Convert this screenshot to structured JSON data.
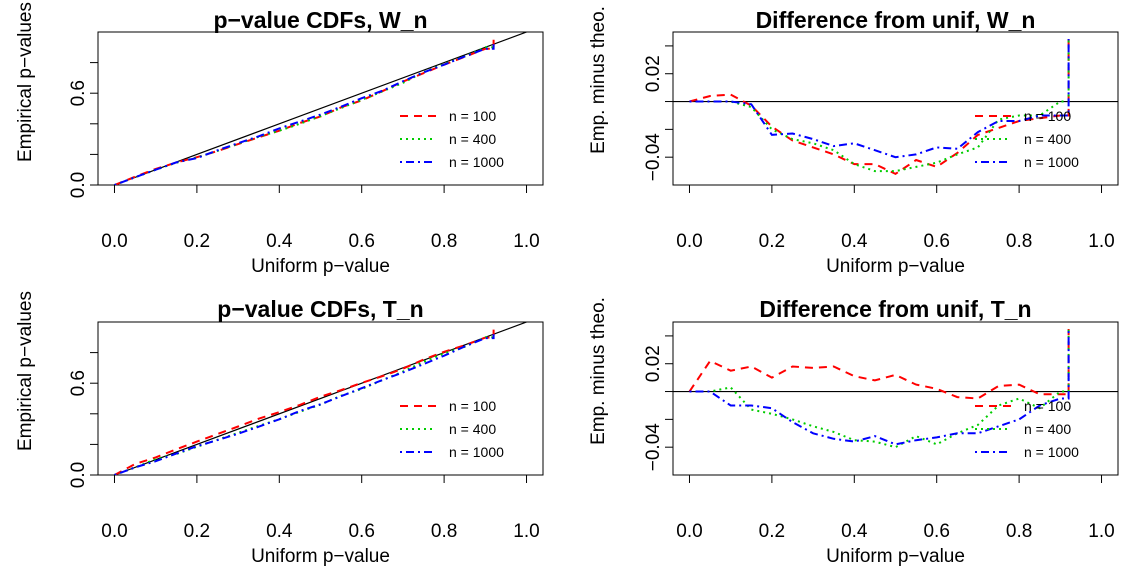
{
  "chart_data": [
    {
      "type": "line",
      "title": "p−value CDFs, W_n",
      "xlabel": "Uniform p−value",
      "ylabel": "Empirical p−values",
      "xlim": [
        -0.04,
        1.04
      ],
      "ylim": [
        0.0,
        1.0
      ],
      "xticks": [
        "0.0",
        "0.2",
        "0.4",
        "0.6",
        "0.8",
        "1.0"
      ],
      "yticks": [
        "0.0",
        "0.6"
      ],
      "reference_line": "y = x",
      "legend_position": "right",
      "x": [
        0.0,
        0.05,
        0.1,
        0.15,
        0.2,
        0.25,
        0.3,
        0.35,
        0.4,
        0.45,
        0.5,
        0.55,
        0.6,
        0.65,
        0.7,
        0.75,
        0.8,
        0.85,
        0.9,
        0.92
      ],
      "series": [
        {
          "name": "n = 100",
          "color": "#ff0000",
          "dash": "dashed",
          "values": [
            0.0,
            0.054,
            0.105,
            0.147,
            0.182,
            0.222,
            0.267,
            0.312,
            0.355,
            0.405,
            0.448,
            0.508,
            0.553,
            0.613,
            0.676,
            0.731,
            0.786,
            0.838,
            0.89,
            0.95
          ]
        },
        {
          "name": "n = 400",
          "color": "#00cc00",
          "dash": "dotted",
          "values": [
            0.0,
            0.05,
            0.1,
            0.146,
            0.18,
            0.223,
            0.27,
            0.315,
            0.355,
            0.4,
            0.45,
            0.503,
            0.556,
            0.612,
            0.667,
            0.737,
            0.79,
            0.84,
            0.9,
            0.92
          ]
        },
        {
          "name": "n = 1000",
          "color": "#0000ff",
          "dash": "dashdot",
          "values": [
            0.0,
            0.05,
            0.1,
            0.148,
            0.176,
            0.227,
            0.273,
            0.318,
            0.37,
            0.415,
            0.46,
            0.512,
            0.567,
            0.616,
            0.678,
            0.736,
            0.786,
            0.84,
            0.89,
            0.92
          ]
        }
      ]
    },
    {
      "type": "line",
      "title": "Difference from unif, W_n",
      "xlabel": "Uniform p−value",
      "ylabel": "Emp. minus theo.",
      "xlim": [
        -0.04,
        1.04
      ],
      "ylim": [
        -0.06,
        0.05
      ],
      "xticks": [
        "0.0",
        "0.2",
        "0.4",
        "0.6",
        "0.8",
        "1.0"
      ],
      "yticks": [
        "−0.04",
        "0.02"
      ],
      "reference_line": "y = 0",
      "legend_position": "right",
      "x": [
        0.0,
        0.05,
        0.1,
        0.15,
        0.2,
        0.25,
        0.3,
        0.35,
        0.4,
        0.45,
        0.5,
        0.55,
        0.6,
        0.65,
        0.7,
        0.75,
        0.8,
        0.85,
        0.9,
        0.92
      ],
      "series": [
        {
          "name": "n = 100",
          "color": "#ff0000",
          "dash": "dashed",
          "values": [
            0.0,
            0.004,
            0.005,
            -0.003,
            -0.018,
            -0.028,
            -0.033,
            -0.038,
            -0.045,
            -0.045,
            -0.052,
            -0.042,
            -0.047,
            -0.037,
            -0.024,
            -0.019,
            -0.014,
            -0.012,
            -0.01,
            0.045
          ]
        },
        {
          "name": "n = 400",
          "color": "#00cc00",
          "dash": "dotted",
          "values": [
            0.0,
            0.0,
            0.0,
            -0.004,
            -0.02,
            -0.027,
            -0.03,
            -0.035,
            -0.045,
            -0.05,
            -0.05,
            -0.047,
            -0.044,
            -0.038,
            -0.033,
            -0.013,
            -0.01,
            -0.01,
            0.0,
            0.045
          ]
        },
        {
          "name": "n = 1000",
          "color": "#0000ff",
          "dash": "dashdot",
          "values": [
            0.0,
            0.0,
            0.0,
            -0.002,
            -0.024,
            -0.023,
            -0.027,
            -0.032,
            -0.03,
            -0.035,
            -0.04,
            -0.038,
            -0.033,
            -0.034,
            -0.022,
            -0.014,
            -0.014,
            -0.01,
            -0.01,
            0.045
          ]
        }
      ]
    },
    {
      "type": "line",
      "title": "p−value CDFs, T_n",
      "xlabel": "Uniform p−value",
      "ylabel": "Empirical p−values",
      "xlim": [
        -0.04,
        1.04
      ],
      "ylim": [
        0.0,
        1.0
      ],
      "xticks": [
        "0.0",
        "0.2",
        "0.4",
        "0.6",
        "0.8",
        "1.0"
      ],
      "yticks": [
        "0.0",
        "0.6"
      ],
      "reference_line": "y = x",
      "legend_position": "right",
      "x": [
        0.0,
        0.05,
        0.1,
        0.15,
        0.2,
        0.25,
        0.3,
        0.35,
        0.4,
        0.45,
        0.5,
        0.55,
        0.6,
        0.65,
        0.7,
        0.75,
        0.8,
        0.85,
        0.9,
        0.92
      ],
      "series": [
        {
          "name": "n = 100",
          "color": "#ff0000",
          "dash": "dashed",
          "values": [
            0.0,
            0.072,
            0.115,
            0.168,
            0.218,
            0.268,
            0.317,
            0.368,
            0.411,
            0.458,
            0.512,
            0.555,
            0.602,
            0.646,
            0.695,
            0.754,
            0.805,
            0.848,
            0.898,
            0.95
          ]
        },
        {
          "name": "n = 400",
          "color": "#00cc00",
          "dash": "dotted",
          "values": [
            0.0,
            0.05,
            0.103,
            0.137,
            0.184,
            0.23,
            0.275,
            0.321,
            0.365,
            0.414,
            0.46,
            0.518,
            0.562,
            0.62,
            0.676,
            0.74,
            0.795,
            0.838,
            0.9,
            0.92
          ]
        },
        {
          "name": "n = 1000",
          "color": "#0000ff",
          "dash": "dashdot",
          "values": [
            0.0,
            0.05,
            0.09,
            0.14,
            0.188,
            0.228,
            0.27,
            0.316,
            0.364,
            0.418,
            0.462,
            0.515,
            0.567,
            0.62,
            0.67,
            0.725,
            0.78,
            0.84,
            0.895,
            0.92
          ]
        }
      ]
    },
    {
      "type": "line",
      "title": "Difference from unif, T_n",
      "xlabel": "Uniform p−value",
      "ylabel": "Emp. minus theo.",
      "xlim": [
        -0.04,
        1.04
      ],
      "ylim": [
        -0.06,
        0.05
      ],
      "xticks": [
        "0.0",
        "0.2",
        "0.4",
        "0.6",
        "0.8",
        "1.0"
      ],
      "yticks": [
        "−0.04",
        "0.02"
      ],
      "reference_line": "y = 0",
      "legend_position": "right",
      "x": [
        0.0,
        0.05,
        0.1,
        0.15,
        0.2,
        0.25,
        0.3,
        0.35,
        0.4,
        0.45,
        0.5,
        0.55,
        0.6,
        0.65,
        0.7,
        0.75,
        0.8,
        0.85,
        0.9,
        0.92
      ],
      "series": [
        {
          "name": "n = 100",
          "color": "#ff0000",
          "dash": "dashed",
          "values": [
            0.0,
            0.022,
            0.015,
            0.018,
            0.01,
            0.018,
            0.017,
            0.018,
            0.011,
            0.008,
            0.012,
            0.005,
            0.002,
            -0.004,
            -0.005,
            0.004,
            0.005,
            -0.002,
            -0.002,
            0.045
          ]
        },
        {
          "name": "n = 400",
          "color": "#00cc00",
          "dash": "dotted",
          "values": [
            0.0,
            0.0,
            0.003,
            -0.013,
            -0.016,
            -0.02,
            -0.025,
            -0.029,
            -0.035,
            -0.036,
            -0.04,
            -0.032,
            -0.038,
            -0.03,
            -0.024,
            -0.01,
            -0.005,
            -0.012,
            0.0,
            0.045
          ]
        },
        {
          "name": "n = 1000",
          "color": "#0000ff",
          "dash": "dashdot",
          "values": [
            0.0,
            0.0,
            -0.01,
            -0.01,
            -0.012,
            -0.022,
            -0.03,
            -0.034,
            -0.036,
            -0.032,
            -0.038,
            -0.035,
            -0.033,
            -0.03,
            -0.03,
            -0.025,
            -0.02,
            -0.01,
            -0.005,
            0.045
          ]
        }
      ]
    }
  ]
}
